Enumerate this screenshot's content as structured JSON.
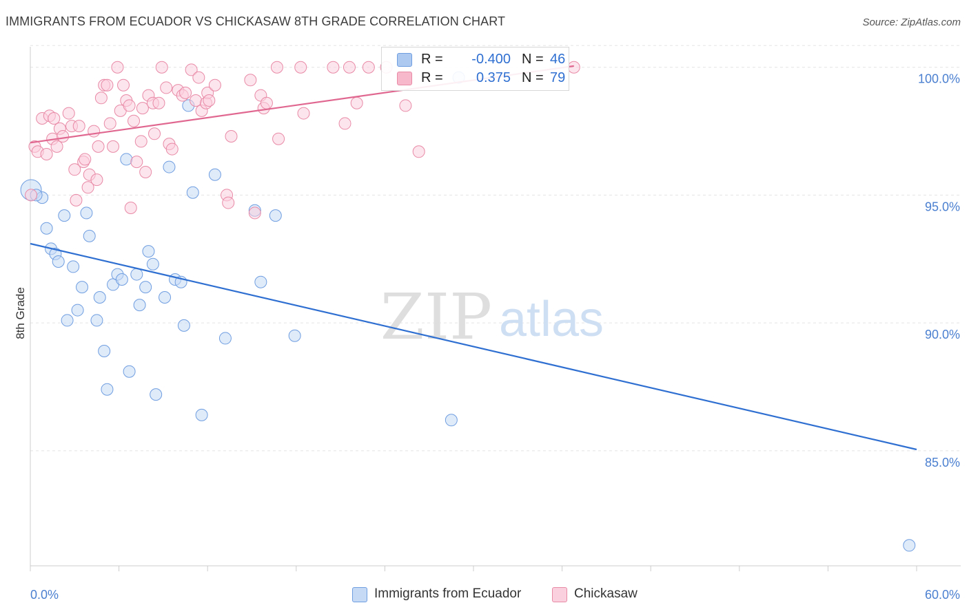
{
  "title": "IMMIGRANTS FROM ECUADOR VS CHICKASAW 8TH GRADE CORRELATION CHART",
  "source": "Source: ZipAtlas.com",
  "watermark": {
    "zip": "ZIP",
    "atlas": "atlas"
  },
  "legend": {
    "rows": [
      {
        "r_label": "R =",
        "r_value": "-0.400",
        "n_label": "N =",
        "n_value": "46",
        "color": "#adc9f0",
        "border": "#6e9de0"
      },
      {
        "r_label": "R =",
        "r_value": "0.375",
        "n_label": "N =",
        "n_value": "79",
        "color": "#f8b8cc",
        "border": "#e889a6"
      }
    ]
  },
  "bottom_legend": [
    {
      "label": "Immigrants from Ecuador",
      "color": "#c6daf6",
      "border": "#6e9de0"
    },
    {
      "label": "Chickasaw",
      "color": "#fbd0de",
      "border": "#e889a6"
    }
  ],
  "chart_data": {
    "type": "scatter",
    "xlabel": "",
    "ylabel": "8th Grade",
    "xlim": [
      0,
      60
    ],
    "ylim": [
      80.5,
      100.8
    ],
    "x_tick_labels": [
      "0.0%",
      "60.0%"
    ],
    "y_ticks": [
      85,
      90,
      95,
      100
    ],
    "y_tick_labels": [
      "85.0%",
      "90.0%",
      "95.0%",
      "100.0%"
    ],
    "grid": true,
    "series": [
      {
        "name": "Immigrants from Ecuador",
        "color": "#6e9de0",
        "fill": "#c6daf6",
        "line_color": "#2e6fd1",
        "trend": {
          "x": [
            0,
            60
          ],
          "y": [
            93.1,
            85.05
          ]
        },
        "points": [
          [
            0.05,
            95.2
          ],
          [
            0.8,
            94.9
          ],
          [
            1.1,
            93.7
          ],
          [
            1.4,
            92.9
          ],
          [
            1.7,
            92.7
          ],
          [
            1.9,
            92.4
          ],
          [
            2.3,
            94.2
          ],
          [
            2.5,
            90.1
          ],
          [
            2.9,
            92.2
          ],
          [
            3.2,
            90.5
          ],
          [
            3.5,
            91.4
          ],
          [
            3.8,
            94.3
          ],
          [
            4.0,
            93.4
          ],
          [
            4.5,
            90.1
          ],
          [
            4.7,
            91.0
          ],
          [
            5.0,
            88.9
          ],
          [
            5.2,
            87.4
          ],
          [
            5.6,
            91.5
          ],
          [
            5.9,
            91.9
          ],
          [
            6.2,
            91.7
          ],
          [
            6.5,
            96.4
          ],
          [
            6.7,
            88.1
          ],
          [
            7.2,
            91.9
          ],
          [
            7.4,
            90.7
          ],
          [
            7.8,
            91.4
          ],
          [
            8.0,
            92.8
          ],
          [
            8.3,
            92.3
          ],
          [
            8.5,
            87.2
          ],
          [
            9.1,
            91.0
          ],
          [
            9.4,
            96.1
          ],
          [
            9.8,
            91.7
          ],
          [
            10.2,
            91.6
          ],
          [
            10.4,
            89.9
          ],
          [
            10.7,
            98.5
          ],
          [
            11.0,
            95.1
          ],
          [
            11.6,
            86.4
          ],
          [
            12.5,
            95.8
          ],
          [
            13.2,
            89.4
          ],
          [
            15.2,
            94.4
          ],
          [
            15.6,
            91.6
          ],
          [
            16.6,
            94.2
          ],
          [
            17.9,
            89.5
          ],
          [
            28.5,
            86.2
          ],
          [
            29.0,
            99.6
          ],
          [
            59.5,
            81.3
          ],
          [
            0.4,
            95.0
          ]
        ]
      },
      {
        "name": "Chickasaw",
        "color": "#e889a6",
        "fill": "#fbd0de",
        "line_color": "#e0678f",
        "trend": {
          "x": [
            0,
            36.8
          ],
          "y": [
            97.05,
            100.05
          ]
        },
        "points": [
          [
            0.05,
            95.0
          ],
          [
            0.3,
            96.9
          ],
          [
            0.5,
            96.7
          ],
          [
            0.8,
            98.0
          ],
          [
            1.1,
            96.6
          ],
          [
            1.3,
            98.1
          ],
          [
            1.5,
            97.2
          ],
          [
            1.6,
            98.0
          ],
          [
            1.8,
            96.9
          ],
          [
            2.0,
            97.6
          ],
          [
            2.2,
            97.3
          ],
          [
            2.6,
            98.2
          ],
          [
            2.8,
            97.7
          ],
          [
            3.0,
            96.0
          ],
          [
            3.1,
            94.8
          ],
          [
            3.3,
            97.7
          ],
          [
            3.6,
            96.3
          ],
          [
            3.7,
            96.4
          ],
          [
            3.9,
            95.3
          ],
          [
            4.0,
            95.8
          ],
          [
            4.3,
            97.5
          ],
          [
            4.5,
            95.6
          ],
          [
            4.6,
            96.9
          ],
          [
            4.8,
            98.8
          ],
          [
            5.0,
            99.3
          ],
          [
            5.2,
            99.3
          ],
          [
            5.4,
            97.8
          ],
          [
            5.6,
            96.9
          ],
          [
            5.9,
            100.0
          ],
          [
            6.1,
            98.3
          ],
          [
            6.3,
            99.3
          ],
          [
            6.5,
            98.7
          ],
          [
            6.7,
            98.5
          ],
          [
            6.8,
            94.5
          ],
          [
            7.0,
            97.9
          ],
          [
            7.2,
            96.3
          ],
          [
            7.5,
            97.1
          ],
          [
            7.6,
            98.4
          ],
          [
            7.8,
            95.9
          ],
          [
            8.0,
            98.9
          ],
          [
            8.3,
            98.6
          ],
          [
            8.4,
            97.4
          ],
          [
            8.7,
            98.6
          ],
          [
            8.9,
            100.0
          ],
          [
            9.2,
            99.2
          ],
          [
            9.4,
            97.0
          ],
          [
            9.6,
            96.8
          ],
          [
            10.0,
            99.1
          ],
          [
            10.3,
            98.9
          ],
          [
            10.9,
            99.9
          ],
          [
            11.2,
            98.7
          ],
          [
            11.4,
            99.6
          ],
          [
            11.6,
            98.3
          ],
          [
            11.9,
            98.6
          ],
          [
            12.0,
            99.0
          ],
          [
            12.1,
            98.7
          ],
          [
            12.5,
            99.3
          ],
          [
            13.3,
            95.0
          ],
          [
            13.4,
            94.7
          ],
          [
            13.6,
            97.3
          ],
          [
            14.9,
            99.5
          ],
          [
            15.2,
            94.3
          ],
          [
            15.6,
            98.9
          ],
          [
            15.8,
            98.4
          ],
          [
            16.0,
            98.6
          ],
          [
            16.7,
            100.0
          ],
          [
            16.8,
            97.2
          ],
          [
            18.3,
            100.0
          ],
          [
            18.5,
            98.2
          ],
          [
            20.5,
            100.0
          ],
          [
            21.3,
            97.8
          ],
          [
            21.6,
            100.0
          ],
          [
            22.1,
            98.6
          ],
          [
            22.9,
            100.0
          ],
          [
            24.1,
            100.0
          ],
          [
            25.4,
            98.5
          ],
          [
            26.3,
            96.7
          ],
          [
            36.8,
            100.0
          ],
          [
            10.5,
            99.0
          ]
        ]
      }
    ]
  }
}
